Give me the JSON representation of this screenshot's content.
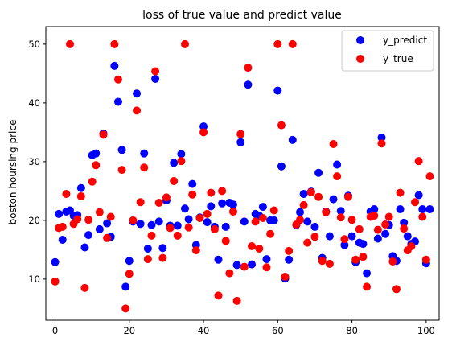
{
  "chart_data": {
    "type": "scatter",
    "title": "loss of true value and predict value",
    "xlabel": "",
    "ylabel": "boston hoursing price",
    "xlim": [
      -2.5,
      103.5
    ],
    "ylim": [
      3,
      53
    ],
    "xticks": [
      0,
      20,
      40,
      60,
      80,
      100
    ],
    "yticks": [
      10,
      20,
      30,
      40,
      50
    ],
    "grid": false,
    "legend_position": "top-right",
    "series": [
      {
        "name": "y_predict",
        "color": "#0000ff",
        "x": [
          0,
          1,
          2,
          3,
          4,
          5,
          6,
          7,
          8,
          9,
          10,
          11,
          12,
          13,
          14,
          15,
          16,
          17,
          18,
          19,
          20,
          21,
          22,
          23,
          24,
          25,
          26,
          27,
          28,
          29,
          30,
          31,
          32,
          33,
          34,
          35,
          36,
          37,
          38,
          39,
          40,
          41,
          42,
          43,
          44,
          45,
          46,
          47,
          48,
          49,
          50,
          51,
          52,
          53,
          54,
          55,
          56,
          57,
          58,
          59,
          60,
          61,
          62,
          63,
          64,
          65,
          66,
          67,
          68,
          69,
          70,
          71,
          72,
          73,
          74,
          75,
          76,
          77,
          78,
          79,
          80,
          81,
          82,
          83,
          84,
          85,
          86,
          87,
          88,
          89,
          90,
          91,
          92,
          93,
          94,
          95,
          96,
          97,
          98,
          99,
          100,
          101
        ],
        "y": [
          12.9,
          21.1,
          16.7,
          21.5,
          21.7,
          20.8,
          20.9,
          25.5,
          15.4,
          17.5,
          31.1,
          31.4,
          18.5,
          34.8,
          19.5,
          17.2,
          46.3,
          40.2,
          32,
          8.7,
          13.1,
          19.8,
          41.6,
          19.4,
          31.4,
          15.2,
          19.2,
          44.1,
          19.8,
          15.3,
          23.4,
          19.1,
          29.8,
          19.1,
          31.3,
          22,
          20.2,
          26.2,
          15.8,
          20.5,
          36,
          19.7,
          22.4,
          18.9,
          13.3,
          22.9,
          18.9,
          23,
          22.7,
          12.4,
          33.3,
          19.8,
          43.1,
          12.5,
          21.1,
          20.8,
          22.3,
          13.4,
          20,
          20,
          42.1,
          29.2,
          10.1,
          13.3,
          33.7,
          19.2,
          21.4,
          24.5,
          19.8,
          24.9,
          18.9,
          28.1,
          13.6,
          21.5,
          17.3,
          23.6,
          29.5,
          21.6,
          15.8,
          24.2,
          17.3,
          12.9,
          16.2,
          16,
          11,
          21.5,
          21.9,
          16.9,
          34.1,
          17.7,
          19.2,
          13.9,
          13.1,
          21.9,
          19.6,
          17.3,
          16,
          16.4,
          24.3,
          21.9,
          12.7,
          21.9
        ]
      },
      {
        "name": "y_true",
        "color": "#ff0000",
        "x": [
          0,
          1,
          2,
          3,
          4,
          5,
          6,
          7,
          8,
          9,
          10,
          11,
          12,
          13,
          14,
          15,
          16,
          17,
          18,
          19,
          20,
          21,
          22,
          23,
          24,
          25,
          26,
          27,
          28,
          29,
          30,
          31,
          32,
          33,
          34,
          35,
          36,
          37,
          38,
          39,
          40,
          41,
          42,
          43,
          44,
          45,
          46,
          47,
          48,
          49,
          50,
          51,
          52,
          53,
          54,
          55,
          56,
          57,
          58,
          59,
          60,
          61,
          62,
          63,
          64,
          65,
          66,
          67,
          68,
          69,
          70,
          71,
          72,
          73,
          74,
          75,
          76,
          77,
          78,
          79,
          80,
          81,
          82,
          83,
          84,
          85,
          86,
          87,
          88,
          89,
          90,
          91,
          92,
          93,
          94,
          95,
          96,
          97,
          98,
          99,
          100,
          101
        ],
        "y": [
          9.6,
          18.7,
          18.9,
          24.5,
          50,
          19.4,
          20.2,
          24.1,
          8.5,
          20.1,
          26.6,
          29.4,
          21.4,
          34.6,
          17,
          20.6,
          50,
          44,
          28.6,
          5,
          10.9,
          20,
          38.7,
          23.1,
          29,
          13.4,
          17.4,
          45.4,
          23,
          13.6,
          23.9,
          18.7,
          26.7,
          17.4,
          30.1,
          50,
          18.8,
          24.4,
          14.9,
          20.4,
          35,
          21.1,
          24.7,
          18.5,
          7.2,
          25,
          16.5,
          11,
          21.5,
          6.3,
          34.7,
          12.1,
          46,
          15.6,
          19.8,
          15.2,
          20.4,
          12,
          17.7,
          21.7,
          50,
          36.2,
          10.4,
          14.8,
          50,
          19.3,
          20.1,
          22.6,
          16.2,
          24.8,
          17.2,
          24,
          13.1,
          21.4,
          12.6,
          33,
          27.5,
          20.5,
          16.8,
          24,
          20.1,
          13.3,
          18.5,
          13.8,
          8.7,
          20.6,
          20.8,
          18.4,
          33.1,
          19.3,
          20.6,
          13,
          8.3,
          24.7,
          18.6,
          14.9,
          15.6,
          23.1,
          30.1,
          20.6,
          13.3,
          27.5
        ]
      }
    ]
  }
}
